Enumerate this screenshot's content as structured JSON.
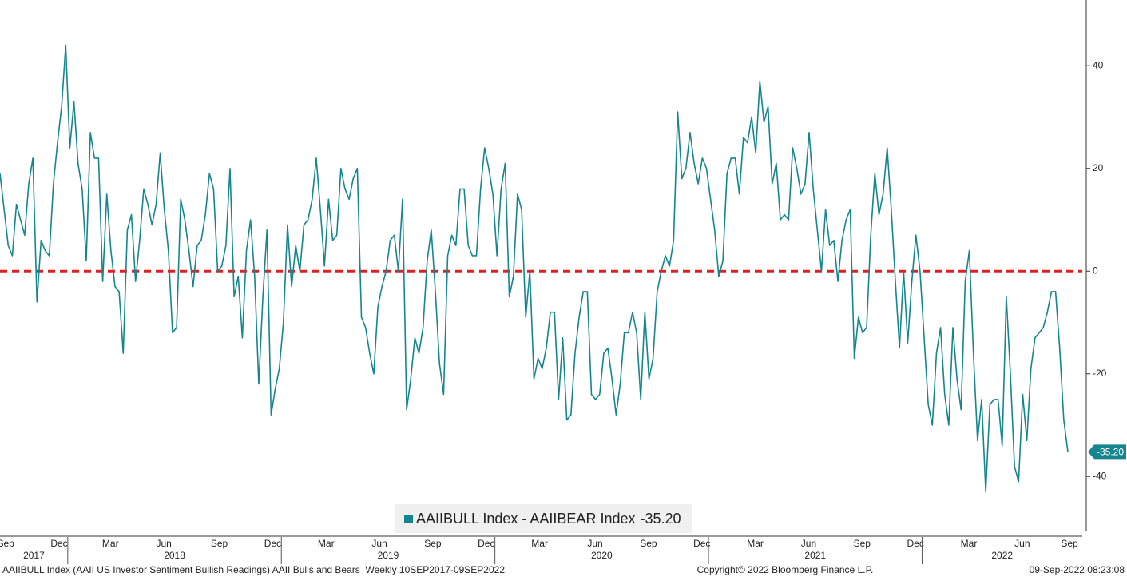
{
  "chart_data": {
    "type": "line",
    "series": [
      {
        "name": "AAIIBULL Index - AAIIBEAR Index",
        "color": "#16858e",
        "last_value_label": "-35.20",
        "values": [
          19,
          12,
          5,
          3,
          13,
          10,
          7,
          17,
          22,
          -6,
          6,
          4,
          3,
          17,
          25,
          32,
          44,
          24,
          33,
          21,
          16,
          2,
          27,
          22,
          22,
          -2,
          15,
          4,
          -3,
          -4,
          -16,
          8,
          11,
          -2,
          6,
          16,
          13,
          9,
          13,
          23,
          12,
          4,
          -12,
          -11,
          14,
          10,
          4,
          -3,
          5,
          6,
          11,
          19,
          16,
          0,
          1,
          5,
          20,
          -5,
          -1,
          -13,
          4,
          10,
          -1,
          -22,
          -5,
          8,
          -28,
          -23,
          -19,
          -10,
          9,
          -3,
          5,
          0,
          9,
          10,
          14,
          22,
          12,
          1,
          14,
          6,
          7,
          20,
          16,
          14,
          18,
          20,
          -9,
          -11,
          -16,
          -20,
          -7,
          -3,
          0,
          6,
          7,
          0,
          14,
          -27,
          -21,
          -13,
          -16,
          -11,
          2,
          8,
          -4,
          -18,
          -24,
          3,
          7,
          5,
          16,
          16,
          5,
          3,
          3,
          16,
          24,
          20,
          15,
          3,
          16,
          21,
          -5,
          -1,
          15,
          12,
          -9,
          0,
          -21,
          -17,
          -19,
          -15,
          -8,
          -8,
          -25,
          -13,
          -29,
          -28,
          -16,
          -9,
          -4,
          -4,
          -24,
          -25,
          -24,
          -16,
          -15,
          -21,
          -28,
          -22,
          -12,
          -12,
          -8,
          -12,
          -25,
          -8,
          -21,
          -17,
          -4,
          0,
          3,
          1,
          6,
          31,
          18,
          20,
          27,
          21,
          17,
          22,
          20,
          14,
          8,
          -1,
          2,
          19,
          22,
          22,
          15,
          26,
          25,
          30,
          23,
          37,
          29,
          32,
          17,
          21,
          10,
          11,
          10,
          24,
          20,
          15,
          17,
          27,
          16,
          8,
          0,
          12,
          5,
          6,
          -2,
          6,
          10,
          12,
          -17,
          -9,
          -12,
          -11,
          7,
          19,
          11,
          15,
          24,
          12,
          -2,
          -15,
          0,
          -14,
          -2,
          7,
          0,
          -13,
          -26,
          -30,
          -16,
          -11,
          -24,
          -30,
          -11,
          -21,
          -27,
          -2,
          4,
          -16,
          -33,
          -25,
          -43,
          -26,
          -25,
          -25,
          -34,
          -5,
          -20,
          -38,
          -41,
          -24,
          -33,
          -19,
          -13,
          -12,
          -11,
          -8,
          -4,
          -4,
          -15,
          -29,
          -35.2
        ]
      }
    ],
    "x": [
      "2017-09",
      "2017-09",
      "2017-09",
      "2017-10",
      "2017-10",
      "2017-10",
      "2017-10",
      "2017-10",
      "2017-11",
      "2017-11",
      "2017-11",
      "2017-11",
      "2017-12",
      "2017-12",
      "2017-12",
      "2017-12",
      "2017-12",
      "2018-01",
      "2018-01",
      "2018-01",
      "2018-01",
      "2018-02",
      "2018-02",
      "2018-02",
      "2018-02",
      "2018-03",
      "2018-03",
      "2018-03",
      "2018-03",
      "2018-04",
      "2018-04",
      "2018-04",
      "2018-04",
      "2018-04",
      "2018-05",
      "2018-05",
      "2018-05",
      "2018-05",
      "2018-06",
      "2018-06",
      "2018-06",
      "2018-06",
      "2018-07",
      "2018-07",
      "2018-07",
      "2018-07",
      "2018-07",
      "2018-08",
      "2018-08",
      "2018-08",
      "2018-08",
      "2018-09",
      "2018-09",
      "2018-09",
      "2018-09",
      "2018-09",
      "2018-10",
      "2018-10",
      "2018-10",
      "2018-10",
      "2018-11",
      "2018-11",
      "2018-11",
      "2018-11",
      "2018-12",
      "2018-12",
      "2018-12",
      "2018-12",
      "2018-12",
      "2019-01",
      "2019-01",
      "2019-01",
      "2019-01",
      "2019-02",
      "2019-02",
      "2019-02",
      "2019-02",
      "2019-03",
      "2019-03",
      "2019-03",
      "2019-03",
      "2019-03",
      "2019-04",
      "2019-04",
      "2019-04",
      "2019-04",
      "2019-05",
      "2019-05",
      "2019-05",
      "2019-05",
      "2019-06",
      "2019-06",
      "2019-06",
      "2019-06",
      "2019-06",
      "2019-07",
      "2019-07",
      "2019-07",
      "2019-07",
      "2019-08",
      "2019-08",
      "2019-08",
      "2019-08",
      "2019-09",
      "2019-09",
      "2019-09",
      "2019-09",
      "2019-09",
      "2019-10",
      "2019-10",
      "2019-10",
      "2019-10",
      "2019-11",
      "2019-11",
      "2019-11",
      "2019-11",
      "2019-12",
      "2019-12",
      "2019-12",
      "2019-12",
      "2019-12",
      "2020-01",
      "2020-01",
      "2020-01",
      "2020-01",
      "2020-02",
      "2020-02",
      "2020-02",
      "2020-02",
      "2020-03",
      "2020-03",
      "2020-03",
      "2020-03",
      "2020-03",
      "2020-04",
      "2020-04",
      "2020-04",
      "2020-04",
      "2020-05",
      "2020-05",
      "2020-05",
      "2020-05",
      "2020-05",
      "2020-06",
      "2020-06",
      "2020-06",
      "2020-06",
      "2020-07",
      "2020-07",
      "2020-07",
      "2020-07",
      "2020-08",
      "2020-08",
      "2020-08",
      "2020-08",
      "2020-08",
      "2020-09",
      "2020-09",
      "2020-09",
      "2020-09",
      "2020-10",
      "2020-10",
      "2020-10",
      "2020-10",
      "2020-11",
      "2020-11",
      "2020-11",
      "2020-11",
      "2020-11",
      "2020-12",
      "2020-12",
      "2020-12",
      "2020-12",
      "2021-01",
      "2021-01",
      "2021-01",
      "2021-01",
      "2021-01",
      "2021-02",
      "2021-02",
      "2021-02",
      "2021-02",
      "2021-03",
      "2021-03",
      "2021-03",
      "2021-03",
      "2021-04",
      "2021-04",
      "2021-04",
      "2021-04",
      "2021-05",
      "2021-05",
      "2021-05",
      "2021-05",
      "2021-05",
      "2021-06",
      "2021-06",
      "2021-06",
      "2021-06",
      "2021-07",
      "2021-07",
      "2021-07",
      "2021-07",
      "2021-08",
      "2021-08",
      "2021-08",
      "2021-08",
      "2021-08",
      "2021-09",
      "2021-09",
      "2021-09",
      "2021-09",
      "2021-10",
      "2021-10",
      "2021-10",
      "2021-10",
      "2021-10",
      "2021-11",
      "2021-11",
      "2021-11",
      "2021-11",
      "2021-12",
      "2021-12",
      "2021-12",
      "2021-12",
      "2022-01",
      "2022-01",
      "2022-01",
      "2022-01",
      "2022-01",
      "2022-02",
      "2022-02",
      "2022-02",
      "2022-02",
      "2022-03",
      "2022-03",
      "2022-03",
      "2022-03",
      "2022-04",
      "2022-04",
      "2022-04",
      "2022-04",
      "2022-05",
      "2022-05",
      "2022-05",
      "2022-05",
      "2022-05",
      "2022-06",
      "2022-06",
      "2022-06",
      "2022-06",
      "2022-07",
      "2022-07",
      "2022-07",
      "2022-07",
      "2022-07",
      "2022-08",
      "2022-08",
      "2022-08",
      "2022-08",
      "2022-09"
    ],
    "xticks": [
      {
        "value": "2017-09",
        "label": "Sep"
      },
      {
        "value": "2017-12",
        "label": "Dec"
      },
      {
        "value": "2018-03",
        "label": "Mar"
      },
      {
        "value": "2018-06",
        "label": "Jun"
      },
      {
        "value": "2018-09",
        "label": "Sep"
      },
      {
        "value": "2018-12",
        "label": "Dec"
      },
      {
        "value": "2019-03",
        "label": "Mar"
      },
      {
        "value": "2019-06",
        "label": "Jun"
      },
      {
        "value": "2019-09",
        "label": "Sep"
      },
      {
        "value": "2019-12",
        "label": "Dec"
      },
      {
        "value": "2020-03",
        "label": "Mar"
      },
      {
        "value": "2020-06",
        "label": "Jun"
      },
      {
        "value": "2020-09",
        "label": "Sep"
      },
      {
        "value": "2020-12",
        "label": "Dec"
      },
      {
        "value": "2021-03",
        "label": "Mar"
      },
      {
        "value": "2021-06",
        "label": "Jun"
      },
      {
        "value": "2021-09",
        "label": "Sep"
      },
      {
        "value": "2021-12",
        "label": "Dec"
      },
      {
        "value": "2022-03",
        "label": "Mar"
      },
      {
        "value": "2022-06",
        "label": "Jun"
      },
      {
        "value": "2022-09",
        "label": "Sep"
      }
    ],
    "year_ticks": [
      "2017",
      "2018",
      "2019",
      "2020",
      "2021",
      "2022"
    ],
    "ylim": [
      -50.7,
      52.8
    ],
    "yticks": [
      -40,
      -20,
      0,
      20,
      40
    ],
    "reference_line": {
      "value": 0,
      "color": "#e02020"
    },
    "footer": {
      "description": "AAIIBULL Index (AAII US Investor Sentiment Bullish Readings) AAII Bulls and Bears  Weekly 10SEP2017-09SEP2022",
      "copyright": "Copyright© 2022 Bloomberg Finance L.P.",
      "timestamp": "09-Sep-2022 08:23:08"
    }
  }
}
